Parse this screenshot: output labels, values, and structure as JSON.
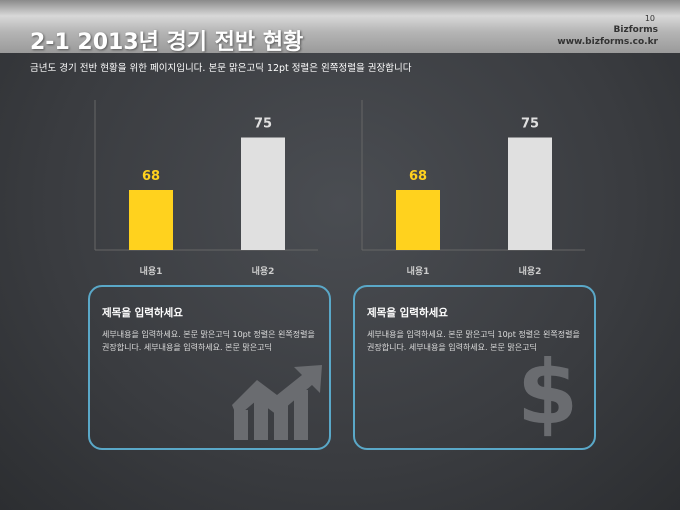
{
  "header": {
    "title": "2-1 2013년 경기 전반 현황",
    "page_number": "10",
    "brand": "Bizforms",
    "url": "www.bizforms.co.kr"
  },
  "subtitle": "금년도 경기 전반 현황을 위한 페이지입니다. 본문 맑은고딕 12pt 정렬은 왼쪽정렬을 권장합니다",
  "chart_data": [
    {
      "type": "bar",
      "categories": [
        "내용1",
        "내용2"
      ],
      "values": [
        68,
        75
      ],
      "colors": [
        "#ffd21e",
        "#e0e0e0"
      ],
      "ylim": [
        60,
        80
      ],
      "title": "",
      "xlabel": "",
      "ylabel": ""
    },
    {
      "type": "bar",
      "categories": [
        "내용1",
        "내용2"
      ],
      "values": [
        68,
        75
      ],
      "colors": [
        "#ffd21e",
        "#e0e0e0"
      ],
      "ylim": [
        60,
        80
      ],
      "title": "",
      "xlabel": "",
      "ylabel": ""
    }
  ],
  "cards": [
    {
      "title": "제목을 입력하세요",
      "body": "세부내용을 입력하세요. 본문 맑은고딕 10pt 정렬은 왼쪽정렬을 권장합니다. 세부내용을 입력하세요. 본문 맑은고딕",
      "icon": "growth-chart-icon"
    },
    {
      "title": "제목을 입력하세요",
      "body": "세부내용을 입력하세요. 본문 맑은고딕 10pt 정렬은 왼쪽정렬을 권장합니다. 세부내용을 입력하세요. 본문 맑은고딕",
      "icon": "dollar-icon"
    }
  ]
}
